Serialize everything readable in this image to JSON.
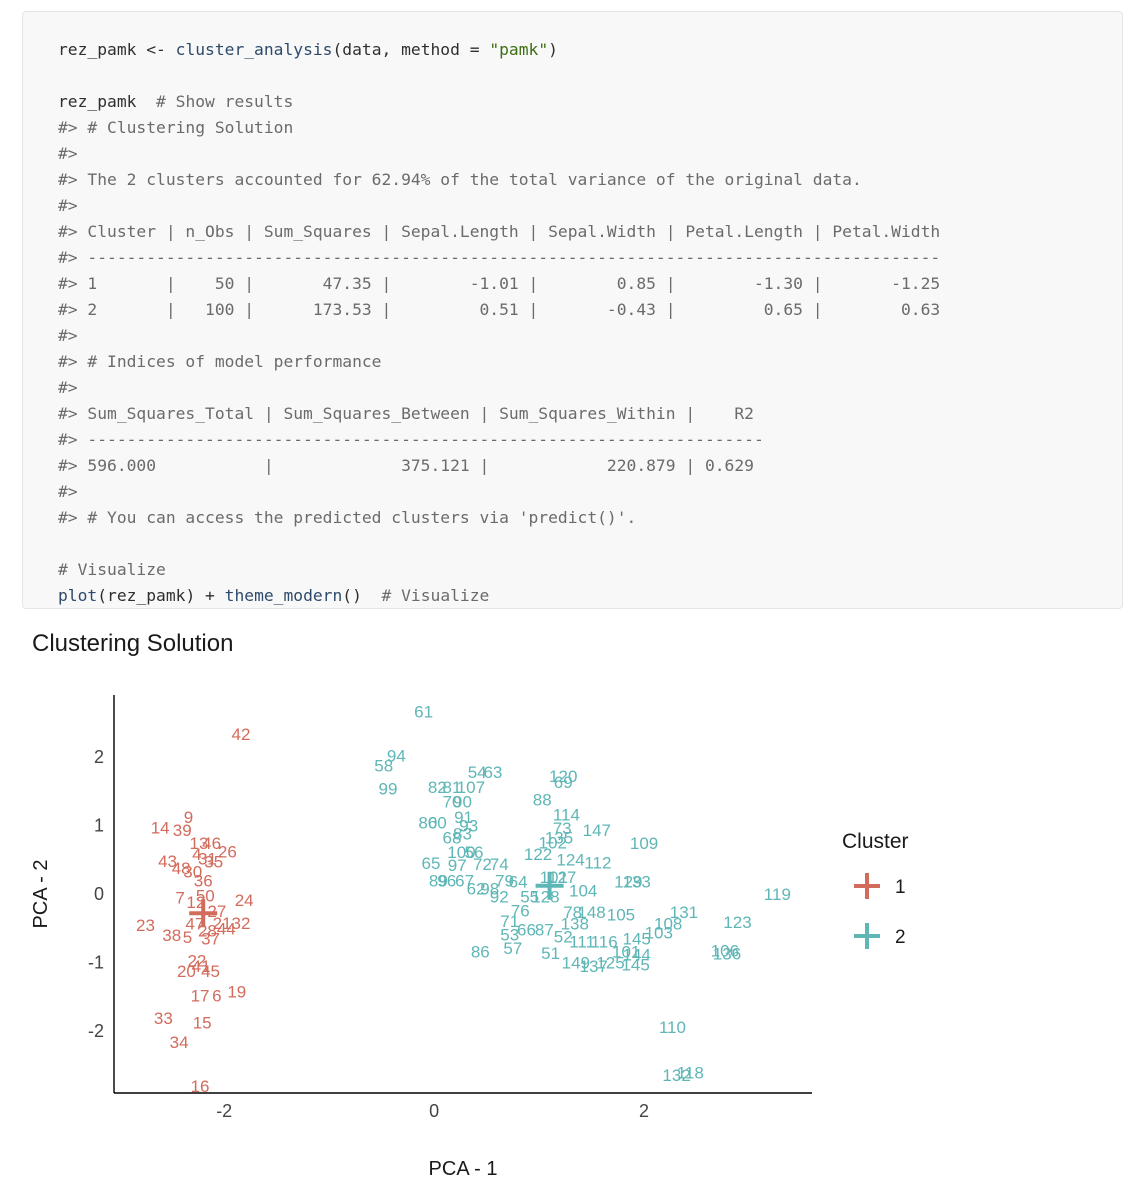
{
  "code": {
    "lines": [
      {
        "seg": [
          {
            "t": "rez_pamk <- ",
            "c": ""
          },
          {
            "t": "cluster_analysis",
            "c": "fn"
          },
          {
            "t": "(data, method = ",
            "c": ""
          },
          {
            "t": "\"pamk\"",
            "c": "str"
          },
          {
            "t": ")",
            "c": ""
          }
        ]
      },
      {
        "seg": []
      },
      {
        "seg": [
          {
            "t": "rez_pamk  ",
            "c": ""
          },
          {
            "t": "# Show results",
            "c": "cm"
          }
        ]
      },
      {
        "seg": [
          {
            "t": "#> # Clustering Solution",
            "c": "out"
          }
        ]
      },
      {
        "seg": [
          {
            "t": "#>",
            "c": "out"
          }
        ]
      },
      {
        "seg": [
          {
            "t": "#> The 2 clusters accounted for 62.94% of the total variance of the original data.",
            "c": "out"
          }
        ]
      },
      {
        "seg": [
          {
            "t": "#>",
            "c": "out"
          }
        ]
      },
      {
        "seg": [
          {
            "t": "#> Cluster | n_Obs | Sum_Squares | Sepal.Length | Sepal.Width | Petal.Length | Petal.Width",
            "c": "out"
          }
        ]
      },
      {
        "seg": [
          {
            "t": "#> ---------------------------------------------------------------------------------------",
            "c": "out"
          }
        ]
      },
      {
        "seg": [
          {
            "t": "#> 1       |    50 |       47.35 |        -1.01 |        0.85 |        -1.30 |       -1.25",
            "c": "out"
          }
        ]
      },
      {
        "seg": [
          {
            "t": "#> 2       |   100 |      173.53 |         0.51 |       -0.43 |         0.65 |        0.63",
            "c": "out"
          }
        ]
      },
      {
        "seg": [
          {
            "t": "#>",
            "c": "out"
          }
        ]
      },
      {
        "seg": [
          {
            "t": "#> # Indices of model performance",
            "c": "out"
          }
        ]
      },
      {
        "seg": [
          {
            "t": "#>",
            "c": "out"
          }
        ]
      },
      {
        "seg": [
          {
            "t": "#> Sum_Squares_Total | Sum_Squares_Between | Sum_Squares_Within |    R2",
            "c": "out"
          }
        ]
      },
      {
        "seg": [
          {
            "t": "#> ---------------------------------------------------------------------",
            "c": "out"
          }
        ]
      },
      {
        "seg": [
          {
            "t": "#> 596.000           |             375.121 |            220.879 | 0.629",
            "c": "out"
          }
        ]
      },
      {
        "seg": [
          {
            "t": "#>",
            "c": "out"
          }
        ]
      },
      {
        "seg": [
          {
            "t": "#> # You can access the predicted clusters via 'predict()'.",
            "c": "out"
          }
        ]
      },
      {
        "seg": []
      },
      {
        "seg": [
          {
            "t": "# Visualize",
            "c": "cm"
          }
        ]
      },
      {
        "seg": [
          {
            "t": "plot",
            "c": "fn"
          },
          {
            "t": "(rez_pamk) + ",
            "c": ""
          },
          {
            "t": "theme_modern",
            "c": "fn"
          },
          {
            "t": "()  ",
            "c": ""
          },
          {
            "t": "# Visualize",
            "c": "cm"
          }
        ]
      }
    ]
  },
  "plot_title": "Clustering Solution",
  "chart_data": {
    "type": "scatter",
    "title": "Clustering Solution",
    "xlabel": "PCA - 1",
    "ylabel": "PCA - 2",
    "xlim": [
      -3.05,
      3.6
    ],
    "ylim": [
      -2.9,
      2.9
    ],
    "xticks": [
      -2,
      0,
      2
    ],
    "yticks": [
      -2,
      -1,
      0,
      1,
      2
    ],
    "grid": false,
    "legend": {
      "title": "Cluster",
      "position": "right"
    },
    "colors": {
      "1": "#d36b5c",
      "2": "#5fb6b6"
    },
    "series": [
      {
        "name": "1",
        "centroid": [
          -2.2,
          -0.28
        ],
        "points": [
          {
            "label": "42",
            "x": -1.84,
            "y": 2.33
          },
          {
            "label": "9",
            "x": -2.34,
            "y": 1.12
          },
          {
            "label": "14",
            "x": -2.61,
            "y": 0.97
          },
          {
            "label": "39",
            "x": -2.4,
            "y": 0.93
          },
          {
            "label": "13",
            "x": -2.24,
            "y": 0.74
          },
          {
            "label": "46",
            "x": -2.12,
            "y": 0.74
          },
          {
            "label": "26",
            "x": -1.97,
            "y": 0.62
          },
          {
            "label": "4",
            "x": -2.26,
            "y": 0.58
          },
          {
            "label": "31",
            "x": -2.16,
            "y": 0.52
          },
          {
            "label": "35",
            "x": -2.1,
            "y": 0.47
          },
          {
            "label": "43",
            "x": -2.54,
            "y": 0.48
          },
          {
            "label": "48",
            "x": -2.41,
            "y": 0.38
          },
          {
            "label": "30",
            "x": -2.3,
            "y": 0.33
          },
          {
            "label": "36",
            "x": -2.2,
            "y": 0.2
          },
          {
            "label": "7",
            "x": -2.42,
            "y": -0.05
          },
          {
            "label": "12",
            "x": -2.27,
            "y": -0.12
          },
          {
            "label": "50",
            "x": -2.18,
            "y": -0.02
          },
          {
            "label": "24",
            "x": -1.81,
            "y": -0.09
          },
          {
            "label": "27",
            "x": -2.07,
            "y": -0.25
          },
          {
            "label": "23",
            "x": -2.75,
            "y": -0.45
          },
          {
            "label": "21",
            "x": -2.02,
            "y": -0.42
          },
          {
            "label": "32",
            "x": -1.84,
            "y": -0.42
          },
          {
            "label": "47",
            "x": -2.28,
            "y": -0.43
          },
          {
            "label": "44",
            "x": -1.98,
            "y": -0.5
          },
          {
            "label": "28",
            "x": -2.16,
            "y": -0.53
          },
          {
            "label": "38",
            "x": -2.5,
            "y": -0.6
          },
          {
            "label": "5",
            "x": -2.35,
            "y": -0.63
          },
          {
            "label": "37",
            "x": -2.13,
            "y": -0.65
          },
          {
            "label": "22",
            "x": -2.26,
            "y": -0.97
          },
          {
            "label": "41",
            "x": -2.22,
            "y": -1.05
          },
          {
            "label": "20",
            "x": -2.36,
            "y": -1.12
          },
          {
            "label": "45",
            "x": -2.13,
            "y": -1.12
          },
          {
            "label": "17",
            "x": -2.23,
            "y": -1.48
          },
          {
            "label": "6",
            "x": -2.07,
            "y": -1.48
          },
          {
            "label": "19",
            "x": -1.88,
            "y": -1.42
          },
          {
            "label": "33",
            "x": -2.58,
            "y": -1.81
          },
          {
            "label": "15",
            "x": -2.21,
            "y": -1.87
          },
          {
            "label": "34",
            "x": -2.43,
            "y": -2.16
          },
          {
            "label": "16",
            "x": -2.23,
            "y": -2.8
          }
        ]
      },
      {
        "name": "2",
        "centroid": [
          1.1,
          0.12
        ],
        "points": [
          {
            "label": "61",
            "x": -0.1,
            "y": 2.66
          },
          {
            "label": "94",
            "x": -0.36,
            "y": 2.02
          },
          {
            "label": "58",
            "x": -0.48,
            "y": 1.87
          },
          {
            "label": "99",
            "x": -0.44,
            "y": 1.54
          },
          {
            "label": "54",
            "x": 0.41,
            "y": 1.78
          },
          {
            "label": "63",
            "x": 0.56,
            "y": 1.78
          },
          {
            "label": "82",
            "x": 0.03,
            "y": 1.56
          },
          {
            "label": "81",
            "x": 0.17,
            "y": 1.56
          },
          {
            "label": "107",
            "x": 0.35,
            "y": 1.56
          },
          {
            "label": "120",
            "x": 1.23,
            "y": 1.72
          },
          {
            "label": "69",
            "x": 1.23,
            "y": 1.63
          },
          {
            "label": "70",
            "x": 0.17,
            "y": 1.35
          },
          {
            "label": "90",
            "x": 0.27,
            "y": 1.35
          },
          {
            "label": "88",
            "x": 1.03,
            "y": 1.38
          },
          {
            "label": "114",
            "x": 1.26,
            "y": 1.16
          },
          {
            "label": "80",
            "x": -0.06,
            "y": 1.04
          },
          {
            "label": "60",
            "x": 0.03,
            "y": 1.04
          },
          {
            "label": "91",
            "x": 0.28,
            "y": 1.12
          },
          {
            "label": "93",
            "x": 0.33,
            "y": 1.0
          },
          {
            "label": "73",
            "x": 1.22,
            "y": 0.96
          },
          {
            "label": "147",
            "x": 1.55,
            "y": 0.93
          },
          {
            "label": "68",
            "x": 0.17,
            "y": 0.82
          },
          {
            "label": "83",
            "x": 0.27,
            "y": 0.88
          },
          {
            "label": "135",
            "x": 1.19,
            "y": 0.82
          },
          {
            "label": "102",
            "x": 1.13,
            "y": 0.75
          },
          {
            "label": "109",
            "x": 2.0,
            "y": 0.74
          },
          {
            "label": "100",
            "x": 0.26,
            "y": 0.61
          },
          {
            "label": "56",
            "x": 0.38,
            "y": 0.61
          },
          {
            "label": "122",
            "x": 0.99,
            "y": 0.58
          },
          {
            "label": "124",
            "x": 1.3,
            "y": 0.5
          },
          {
            "label": "112",
            "x": 1.56,
            "y": 0.46
          },
          {
            "label": "65",
            "x": -0.03,
            "y": 0.45
          },
          {
            "label": "97",
            "x": 0.22,
            "y": 0.42
          },
          {
            "label": "72",
            "x": 0.46,
            "y": 0.44
          },
          {
            "label": "74",
            "x": 0.62,
            "y": 0.44
          },
          {
            "label": "89",
            "x": 0.04,
            "y": 0.2
          },
          {
            "label": "96",
            "x": 0.12,
            "y": 0.2
          },
          {
            "label": "67",
            "x": 0.29,
            "y": 0.2
          },
          {
            "label": "79",
            "x": 0.67,
            "y": 0.2
          },
          {
            "label": "62",
            "x": 0.4,
            "y": 0.08
          },
          {
            "label": "98",
            "x": 0.53,
            "y": 0.08
          },
          {
            "label": "64",
            "x": 0.8,
            "y": 0.18
          },
          {
            "label": "92",
            "x": 0.62,
            "y": -0.04
          },
          {
            "label": "101",
            "x": 1.14,
            "y": 0.25
          },
          {
            "label": "127",
            "x": 1.22,
            "y": 0.25
          },
          {
            "label": "129",
            "x": 1.85,
            "y": 0.18
          },
          {
            "label": "133",
            "x": 1.93,
            "y": 0.18
          },
          {
            "label": "104",
            "x": 1.42,
            "y": 0.05
          },
          {
            "label": "55",
            "x": 0.91,
            "y": -0.04
          },
          {
            "label": "128",
            "x": 1.06,
            "y": -0.04
          },
          {
            "label": "119",
            "x": 3.27,
            "y": 0.0
          },
          {
            "label": "76",
            "x": 0.82,
            "y": -0.24
          },
          {
            "label": "78",
            "x": 1.32,
            "y": -0.26
          },
          {
            "label": "148",
            "x": 1.5,
            "y": -0.26
          },
          {
            "label": "131",
            "x": 2.38,
            "y": -0.26
          },
          {
            "label": "105",
            "x": 1.78,
            "y": -0.3
          },
          {
            "label": "123",
            "x": 2.89,
            "y": -0.41
          },
          {
            "label": "71",
            "x": 0.72,
            "y": -0.39
          },
          {
            "label": "138",
            "x": 1.34,
            "y": -0.43
          },
          {
            "label": "108",
            "x": 2.23,
            "y": -0.43
          },
          {
            "label": "66",
            "x": 0.88,
            "y": -0.52
          },
          {
            "label": "87",
            "x": 1.05,
            "y": -0.52
          },
          {
            "label": "53",
            "x": 0.72,
            "y": -0.59
          },
          {
            "label": "52",
            "x": 1.23,
            "y": -0.62
          },
          {
            "label": "103",
            "x": 2.14,
            "y": -0.56
          },
          {
            "label": "111",
            "x": 1.41,
            "y": -0.69
          },
          {
            "label": "116",
            "x": 1.62,
            "y": -0.69
          },
          {
            "label": "145",
            "x": 1.93,
            "y": -0.65
          },
          {
            "label": "57",
            "x": 0.75,
            "y": -0.79
          },
          {
            "label": "86",
            "x": 0.44,
            "y": -0.84
          },
          {
            "label": "51",
            "x": 1.11,
            "y": -0.86
          },
          {
            "label": "106",
            "x": 2.77,
            "y": -0.82
          },
          {
            "label": "136",
            "x": 2.79,
            "y": -0.87
          },
          {
            "label": "101b",
            "x": 1.83,
            "y": -0.84
          },
          {
            "label": "144",
            "x": 1.93,
            "y": -0.88
          },
          {
            "label": "149",
            "x": 1.35,
            "y": -1.0
          },
          {
            "label": "137",
            "x": 1.52,
            "y": -1.05
          },
          {
            "label": "125",
            "x": 1.68,
            "y": -1.0
          },
          {
            "label": "145b",
            "x": 1.92,
            "y": -1.03
          },
          {
            "label": "110",
            "x": 2.27,
            "y": -1.94
          },
          {
            "label": "132",
            "x": 2.31,
            "y": -2.64
          },
          {
            "label": "118",
            "x": 2.44,
            "y": -2.6
          }
        ]
      }
    ]
  }
}
